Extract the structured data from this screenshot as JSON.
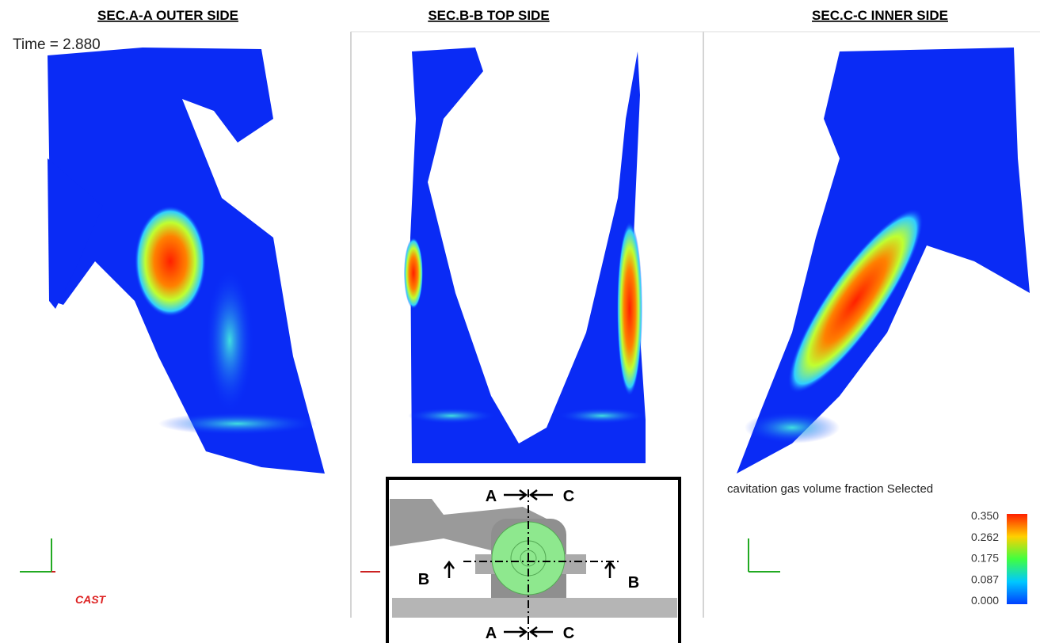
{
  "panels": [
    {
      "title": "SEC.A-A  OUTER SIDE",
      "time": "Time = 2.880"
    },
    {
      "title": "SEC.B-B  TOP SIDE"
    },
    {
      "title": "SEC.C-C  INNER SIDE"
    }
  ],
  "legend": {
    "title": "cavitation gas volume fraction Selected",
    "ticks": [
      "0.350",
      "0.262",
      "0.175",
      "0.087",
      "0.000"
    ]
  },
  "inset": {
    "labels": [
      "A",
      "C",
      "B",
      "B",
      "A",
      "C"
    ]
  },
  "logo": "CAST"
}
